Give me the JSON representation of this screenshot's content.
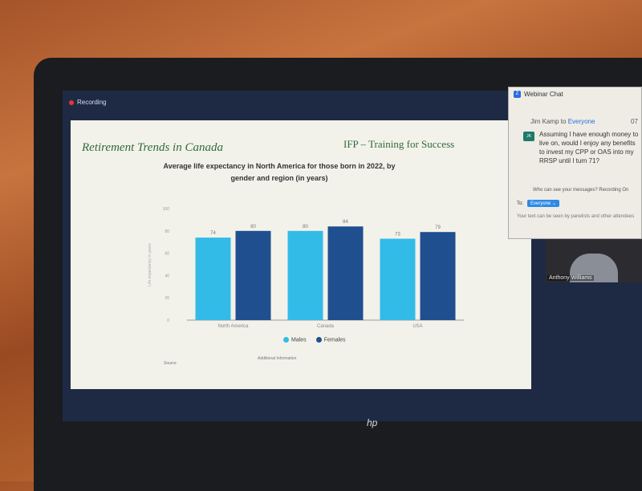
{
  "recording_label": "Recording",
  "slide": {
    "title": "Retirement Trends in Canada",
    "brand": "IFP – Training for Success",
    "source_label": "Source",
    "additional_label": "Additional Information"
  },
  "chart_data": {
    "type": "bar",
    "title": "Average life expectancy in North America for those born in 2022, by gender and region (in years)",
    "categories": [
      "North America",
      "Canada",
      "USA"
    ],
    "series": [
      {
        "name": "Males",
        "color": "#33bbe8",
        "values": [
          74,
          80,
          73
        ]
      },
      {
        "name": "Females",
        "color": "#1f4f8f",
        "values": [
          80,
          84,
          79
        ]
      }
    ],
    "ylabel": "Life expectancy in years",
    "ylim": [
      0,
      100
    ],
    "yticks": [
      "0",
      "20",
      "40",
      "60",
      "80",
      "100"
    ],
    "legend": "bottom",
    "grid": false
  },
  "chat": {
    "title": "Webinar Chat",
    "sender": "Jim Kamp",
    "to_word": "to",
    "recipient": "Everyone",
    "time": "07",
    "avatar": "JK",
    "message": "Assuming I have enough money to live on, would I enjoy any benefits to invest my CPP or OAS into my RRSP until I turn 71?",
    "who_can_see": "Who can see your messages? Recording On",
    "to_label": "To:",
    "to_value": "Everyone",
    "hint": "Your text can be seen by panelists and other attendees"
  },
  "video": {
    "name": "Anthony Williams"
  },
  "laptop_brand": "hp"
}
